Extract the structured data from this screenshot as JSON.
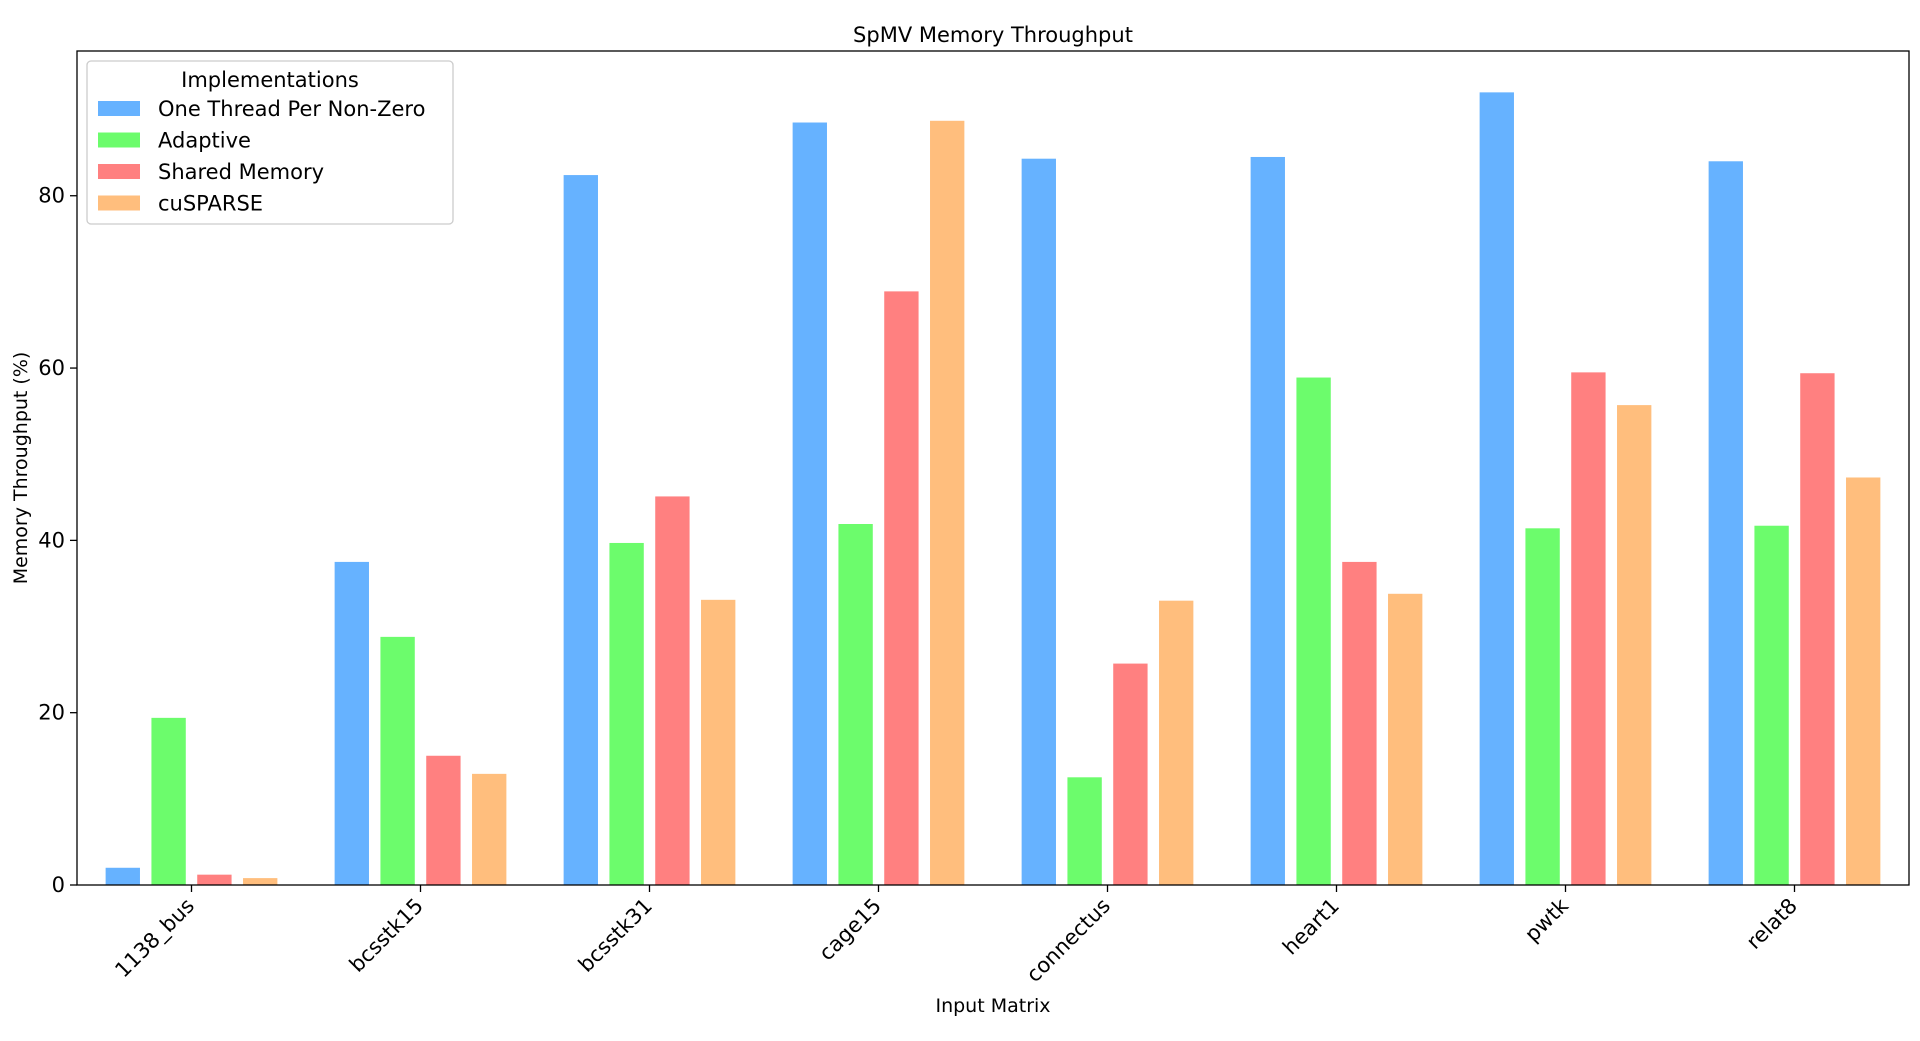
{
  "chart_data": {
    "type": "bar",
    "title": "SpMV Memory Throughput",
    "xlabel": "Input Matrix",
    "ylabel": "Memory Throughput (%)",
    "ylim": [
      0,
      96.8
    ],
    "yticks": [
      0,
      20,
      40,
      60,
      80
    ],
    "grid": false,
    "legend": {
      "title": "Implementations",
      "placement": "top-left"
    },
    "categories": [
      "1138_bus",
      "bcsstk15",
      "bcsstk31",
      "cage15",
      "connectus",
      "heart1",
      "pwtk",
      "relat8"
    ],
    "series": [
      {
        "name": "One Thread Per Non-Zero",
        "color": "#66b2ff",
        "values": [
          2.0,
          37.5,
          82.4,
          88.5,
          84.3,
          84.5,
          92.0,
          84.0
        ]
      },
      {
        "name": "Adaptive",
        "color": "#6cfc6c",
        "values": [
          19.4,
          28.8,
          39.7,
          41.9,
          12.5,
          58.9,
          41.4,
          41.7
        ]
      },
      {
        "name": "Shared Memory",
        "color": "#ff8080",
        "values": [
          1.2,
          15.0,
          45.1,
          68.9,
          25.7,
          37.5,
          59.5,
          59.4
        ]
      },
      {
        "name": "cuSPARSE",
        "color": "#ffbe7d",
        "values": [
          0.8,
          12.9,
          33.1,
          88.7,
          33.0,
          33.8,
          55.7,
          47.3
        ]
      }
    ]
  }
}
